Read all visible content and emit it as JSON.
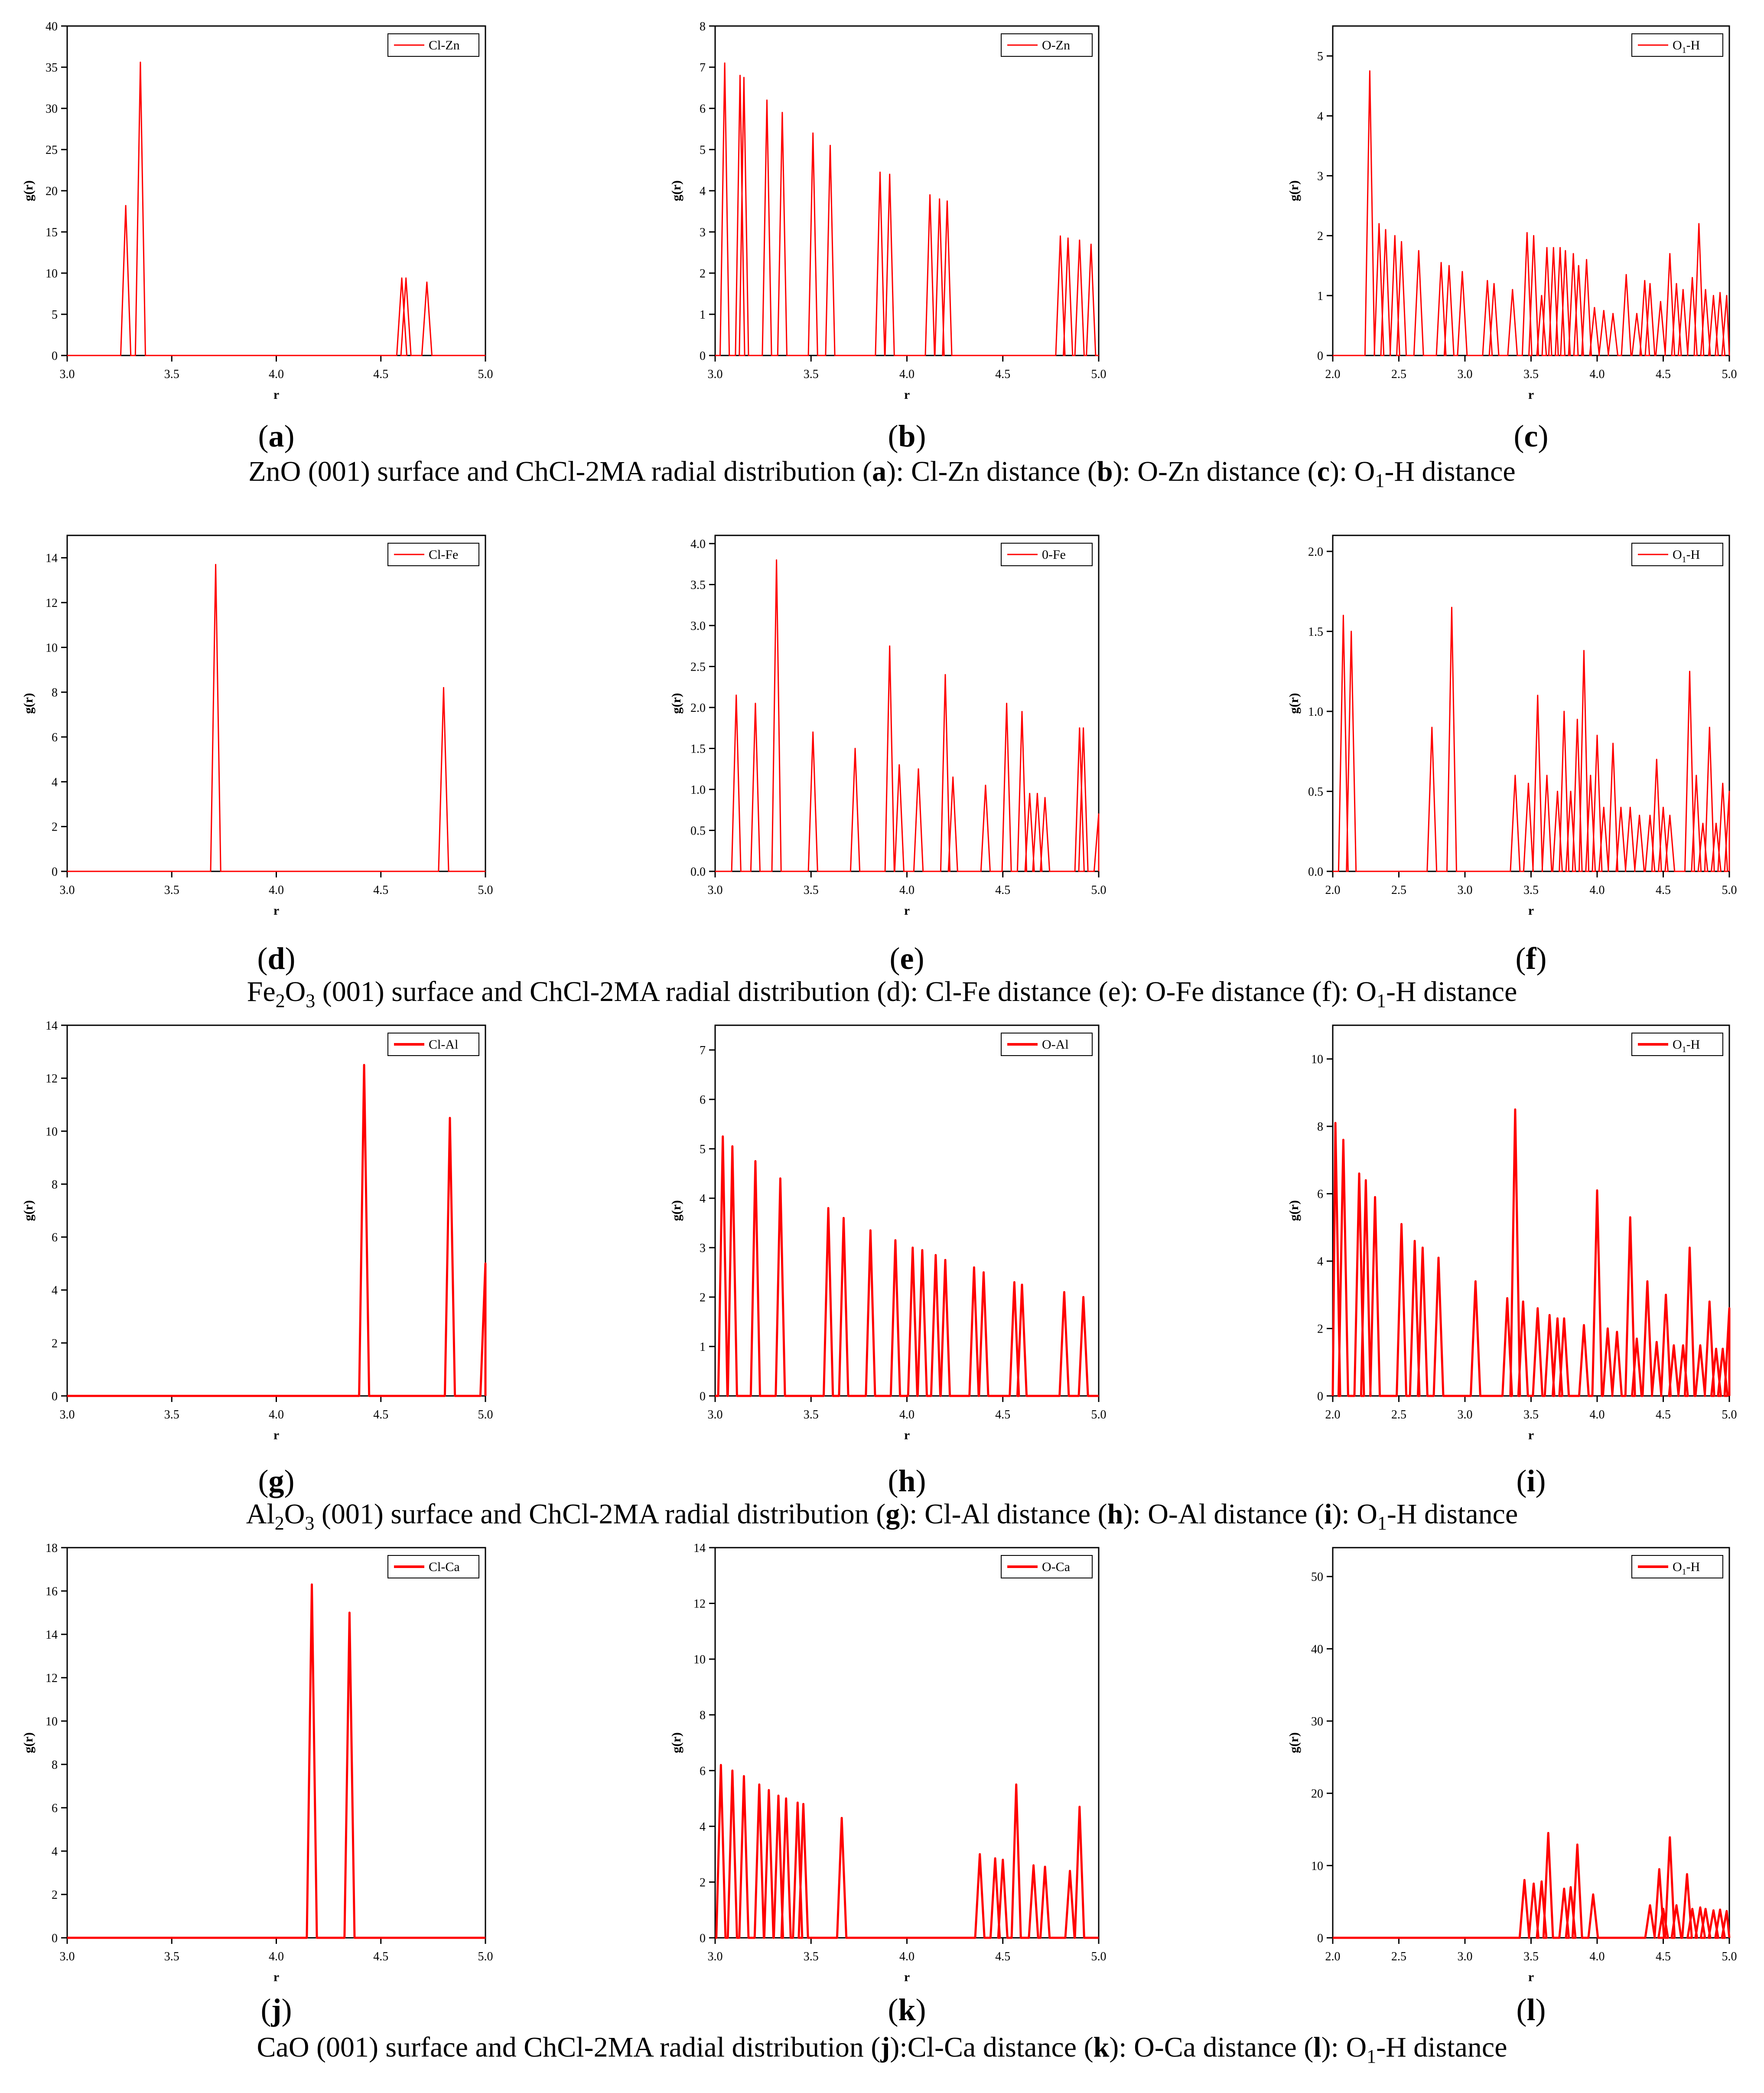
{
  "colors": {
    "series": "#ff0000",
    "axis": "#000000",
    "frame": "#000000"
  },
  "panel_letters": [
    "a",
    "b",
    "c",
    "d",
    "e",
    "f",
    "g",
    "h",
    "i",
    "j",
    "k",
    "l"
  ],
  "captions": [
    {
      "parts": [
        {
          "t": "ZnO (001) surface and ChCl-2MA radial distribution ("
        },
        {
          "t": "a",
          "b": true
        },
        {
          "t": "): Cl-Zn distance ("
        },
        {
          "t": "b",
          "b": true
        },
        {
          "t": "): O-Zn distance ("
        },
        {
          "t": "c",
          "b": true
        },
        {
          "t": "): O"
        },
        {
          "t": "1",
          "sub": true
        },
        {
          "t": "-H distance"
        }
      ]
    },
    {
      "parts": [
        {
          "t": "Fe"
        },
        {
          "t": "2",
          "sub": true
        },
        {
          "t": "O"
        },
        {
          "t": "3",
          "sub": true
        },
        {
          "t": " (001) surface and ChCl-2MA radial distribution (d): Cl-Fe distance (e): O-Fe distance (f): O"
        },
        {
          "t": "1",
          "sub": true
        },
        {
          "t": "-H distance"
        }
      ]
    },
    {
      "parts": [
        {
          "t": "Al"
        },
        {
          "t": "2",
          "sub": true
        },
        {
          "t": "O"
        },
        {
          "t": "3",
          "sub": true
        },
        {
          "t": " (001) surface and ChCl-2MA radial distribution ("
        },
        {
          "t": "g",
          "b": true
        },
        {
          "t": "): Cl-Al distance ("
        },
        {
          "t": "h",
          "b": true
        },
        {
          "t": "): O-Al distance ("
        },
        {
          "t": "i",
          "b": true
        },
        {
          "t": "): O"
        },
        {
          "t": "1",
          "sub": true
        },
        {
          "t": "-H distance"
        }
      ]
    },
    {
      "parts": [
        {
          "t": "CaO (001) surface and ChCl-2MA radial distribution ("
        },
        {
          "t": "j",
          "b": true
        },
        {
          "t": "):Cl-Ca distance ("
        },
        {
          "t": "k",
          "b": true
        },
        {
          "t": "): O-Ca distance ("
        },
        {
          "t": "l",
          "b": true
        },
        {
          "t": "): O"
        },
        {
          "t": "1",
          "sub": true
        },
        {
          "t": "-H distance"
        }
      ]
    }
  ],
  "chart_data": [
    {
      "id": "a",
      "type": "line",
      "legend": "Cl-Zn",
      "xlabel": "r",
      "ylabel": "g(r)",
      "xlim": [
        3.0,
        5.0
      ],
      "ylim": [
        0,
        40
      ],
      "xticks": [
        "3.0",
        "3.5",
        "4.0",
        "4.5",
        "5.0"
      ],
      "yticks": [
        "0",
        "5",
        "10",
        "15",
        "20",
        "25",
        "30",
        "35",
        "40"
      ],
      "peaks": [
        [
          3.28,
          18.2
        ],
        [
          3.35,
          35.6
        ],
        [
          4.6,
          9.4
        ],
        [
          4.62,
          9.4
        ],
        [
          4.72,
          8.9
        ]
      ]
    },
    {
      "id": "b",
      "type": "line",
      "legend": "O-Zn",
      "xlabel": "r",
      "ylabel": "g(r)",
      "xlim": [
        3.0,
        5.0
      ],
      "ylim": [
        0,
        8
      ],
      "xticks": [
        "3.0",
        "3.5",
        "4.0",
        "4.5",
        "5.0"
      ],
      "yticks": [
        "0",
        "1",
        "2",
        "3",
        "4",
        "5",
        "6",
        "7",
        "8"
      ],
      "peaks": [
        [
          3.05,
          7.1
        ],
        [
          3.13,
          6.8
        ],
        [
          3.15,
          6.75
        ],
        [
          3.27,
          6.2
        ],
        [
          3.35,
          5.9
        ],
        [
          3.51,
          5.4
        ],
        [
          3.6,
          5.1
        ],
        [
          3.86,
          4.45
        ],
        [
          3.91,
          4.4
        ],
        [
          4.12,
          3.9
        ],
        [
          4.17,
          3.8
        ],
        [
          4.21,
          3.75
        ],
        [
          4.8,
          2.9
        ],
        [
          4.84,
          2.85
        ],
        [
          4.9,
          2.8
        ],
        [
          4.96,
          2.7
        ]
      ]
    },
    {
      "id": "c",
      "type": "line",
      "legend": "O1-H",
      "legend_sub": true,
      "xlabel": "r",
      "ylabel": "g(r)",
      "xlim": [
        2.0,
        5.0
      ],
      "ylim": [
        0,
        5.5
      ],
      "xticks": [
        "2.0",
        "2.5",
        "3.0",
        "3.5",
        "4.0",
        "4.5",
        "5.0"
      ],
      "yticks": [
        "0",
        "1",
        "2",
        "3",
        "4",
        "5"
      ],
      "peaks": [
        [
          2.28,
          4.75
        ],
        [
          2.35,
          2.2
        ],
        [
          2.4,
          2.1
        ],
        [
          2.47,
          2.0
        ],
        [
          2.52,
          1.9
        ],
        [
          2.65,
          1.75
        ],
        [
          2.82,
          1.55
        ],
        [
          2.88,
          1.5
        ],
        [
          2.98,
          1.4
        ],
        [
          3.17,
          1.25
        ],
        [
          3.22,
          1.2
        ],
        [
          3.36,
          1.1
        ],
        [
          3.47,
          2.05
        ],
        [
          3.52,
          2.0
        ],
        [
          3.58,
          1.0
        ],
        [
          3.62,
          1.8
        ],
        [
          3.67,
          1.8
        ],
        [
          3.72,
          1.8
        ],
        [
          3.76,
          1.75
        ],
        [
          3.82,
          1.7
        ],
        [
          3.86,
          1.5
        ],
        [
          3.92,
          1.6
        ],
        [
          3.98,
          0.8
        ],
        [
          4.05,
          0.75
        ],
        [
          4.12,
          0.7
        ],
        [
          4.22,
          1.35
        ],
        [
          4.3,
          0.7
        ],
        [
          4.36,
          1.25
        ],
        [
          4.4,
          1.2
        ],
        [
          4.48,
          0.9
        ],
        [
          4.55,
          1.7
        ],
        [
          4.6,
          1.2
        ],
        [
          4.65,
          1.1
        ],
        [
          4.72,
          1.3
        ],
        [
          4.77,
          2.2
        ],
        [
          4.82,
          1.1
        ],
        [
          4.88,
          1.0
        ],
        [
          4.93,
          1.05
        ],
        [
          4.98,
          1.0
        ]
      ]
    },
    {
      "id": "d",
      "type": "line",
      "legend": "Cl-Fe",
      "xlabel": "r",
      "ylabel": "g(r)",
      "xlim": [
        3.0,
        5.0
      ],
      "ylim": [
        0,
        15
      ],
      "xticks": [
        "3.0",
        "3.5",
        "4.0",
        "4.5",
        "5.0"
      ],
      "yticks": [
        "0",
        "2",
        "4",
        "6",
        "8",
        "10",
        "12",
        "14"
      ],
      "peaks": [
        [
          3.71,
          13.7
        ],
        [
          4.8,
          8.2
        ]
      ]
    },
    {
      "id": "e",
      "type": "line",
      "legend": "0-Fe",
      "xlabel": "r",
      "ylabel": "g(r)",
      "xlim": [
        3.0,
        5.0
      ],
      "ylim": [
        0,
        4.1
      ],
      "xticks": [
        "3.0",
        "3.5",
        "4.0",
        "4.5",
        "5.0"
      ],
      "yticks": [
        "0.0",
        "0.5",
        "1.0",
        "1.5",
        "2.0",
        "2.5",
        "3.0",
        "3.5",
        "4.0"
      ],
      "peaks": [
        [
          3.11,
          2.15
        ],
        [
          3.21,
          2.05
        ],
        [
          3.32,
          3.8
        ],
        [
          3.51,
          1.7
        ],
        [
          3.73,
          1.5
        ],
        [
          3.91,
          2.75
        ],
        [
          3.96,
          1.3
        ],
        [
          4.06,
          1.25
        ],
        [
          4.2,
          2.4
        ],
        [
          4.24,
          1.15
        ],
        [
          4.41,
          1.05
        ],
        [
          4.52,
          2.05
        ],
        [
          4.6,
          1.95
        ],
        [
          4.64,
          0.95
        ],
        [
          4.68,
          0.95
        ],
        [
          4.72,
          0.9
        ],
        [
          4.9,
          1.75
        ],
        [
          4.92,
          1.75
        ],
        [
          5.0,
          0.7
        ]
      ]
    },
    {
      "id": "f",
      "type": "line",
      "legend": "O1-H",
      "legend_sub": true,
      "xlabel": "r",
      "ylabel": "g(r)",
      "xlim": [
        2.0,
        5.0
      ],
      "ylim": [
        0,
        2.1
      ],
      "xticks": [
        "2.0",
        "2.5",
        "3.0",
        "3.5",
        "4.0",
        "4.5",
        "5.0"
      ],
      "yticks": [
        "0.0",
        "0.5",
        "1.0",
        "1.5",
        "2.0"
      ],
      "peaks": [
        [
          2.08,
          1.6
        ],
        [
          2.14,
          1.5
        ],
        [
          2.75,
          0.9
        ],
        [
          2.9,
          1.65
        ],
        [
          3.38,
          0.6
        ],
        [
          3.48,
          0.55
        ],
        [
          3.55,
          1.1
        ],
        [
          3.62,
          0.6
        ],
        [
          3.7,
          0.5
        ],
        [
          3.75,
          1.0
        ],
        [
          3.8,
          0.5
        ],
        [
          3.85,
          0.95
        ],
        [
          3.9,
          1.38
        ],
        [
          3.95,
          0.6
        ],
        [
          4.0,
          0.85
        ],
        [
          4.05,
          0.4
        ],
        [
          4.12,
          0.8
        ],
        [
          4.18,
          0.4
        ],
        [
          4.25,
          0.4
        ],
        [
          4.32,
          0.35
        ],
        [
          4.4,
          0.35
        ],
        [
          4.45,
          0.7
        ],
        [
          4.5,
          0.4
        ],
        [
          4.55,
          0.35
        ],
        [
          4.7,
          1.25
        ],
        [
          4.75,
          0.6
        ],
        [
          4.8,
          0.3
        ],
        [
          4.85,
          0.9
        ],
        [
          4.9,
          0.3
        ],
        [
          4.95,
          0.55
        ],
        [
          5.0,
          0.5
        ]
      ]
    },
    {
      "id": "g",
      "type": "line",
      "legend": "Cl-Al",
      "xlabel": "r",
      "ylabel": "g(r)",
      "xlim": [
        3.0,
        5.0
      ],
      "ylim": [
        0,
        14
      ],
      "xticks": [
        "3.0",
        "3.5",
        "4.0",
        "4.5",
        "5.0"
      ],
      "yticks": [
        "0",
        "2",
        "4",
        "6",
        "8",
        "10",
        "12",
        "14"
      ],
      "peaks": [
        [
          4.42,
          12.5
        ],
        [
          4.83,
          10.5
        ],
        [
          5.0,
          5.0
        ]
      ]
    },
    {
      "id": "h",
      "type": "line",
      "legend": "O-Al",
      "xlabel": "r",
      "ylabel": "g(r)",
      "xlim": [
        3.0,
        5.0
      ],
      "ylim": [
        0,
        7.5
      ],
      "xticks": [
        "3.0",
        "3.5",
        "4.0",
        "4.5",
        "5.0"
      ],
      "yticks": [
        "0",
        "1",
        "2",
        "3",
        "4",
        "5",
        "6",
        "7"
      ],
      "peaks": [
        [
          3.04,
          5.25
        ],
        [
          3.09,
          5.05
        ],
        [
          3.21,
          4.75
        ],
        [
          3.34,
          4.4
        ],
        [
          3.59,
          3.8
        ],
        [
          3.67,
          3.6
        ],
        [
          3.81,
          3.35
        ],
        [
          3.94,
          3.15
        ],
        [
          4.03,
          3.0
        ],
        [
          4.08,
          2.95
        ],
        [
          4.15,
          2.85
        ],
        [
          4.2,
          2.75
        ],
        [
          4.35,
          2.6
        ],
        [
          4.4,
          2.5
        ],
        [
          4.56,
          2.3
        ],
        [
          4.6,
          2.25
        ],
        [
          4.82,
          2.1
        ],
        [
          4.92,
          2.0
        ]
      ]
    },
    {
      "id": "i",
      "type": "line",
      "legend": "O1-H",
      "legend_sub": true,
      "xlabel": "r",
      "ylabel": "g(r)",
      "xlim": [
        2.0,
        5.0
      ],
      "ylim": [
        0,
        11
      ],
      "xticks": [
        "2.0",
        "2.5",
        "3.0",
        "3.5",
        "4.0",
        "4.5",
        "5.0"
      ],
      "yticks": [
        "0",
        "2",
        "4",
        "6",
        "8",
        "10"
      ],
      "peaks": [
        [
          2.02,
          8.1
        ],
        [
          2.08,
          7.6
        ],
        [
          2.2,
          6.6
        ],
        [
          2.25,
          6.4
        ],
        [
          2.32,
          5.9
        ],
        [
          2.52,
          5.1
        ],
        [
          2.62,
          4.6
        ],
        [
          2.68,
          4.4
        ],
        [
          2.8,
          4.1
        ],
        [
          3.08,
          3.4
        ],
        [
          3.32,
          2.9
        ],
        [
          3.38,
          8.5
        ],
        [
          3.44,
          2.8
        ],
        [
          3.55,
          2.6
        ],
        [
          3.64,
          2.4
        ],
        [
          3.7,
          2.3
        ],
        [
          3.75,
          2.3
        ],
        [
          3.9,
          2.1
        ],
        [
          4.0,
          6.1
        ],
        [
          4.08,
          2.0
        ],
        [
          4.15,
          1.9
        ],
        [
          4.25,
          5.3
        ],
        [
          4.3,
          1.7
        ],
        [
          4.38,
          3.4
        ],
        [
          4.45,
          1.6
        ],
        [
          4.52,
          3.0
        ],
        [
          4.58,
          1.5
        ],
        [
          4.65,
          1.5
        ],
        [
          4.7,
          4.4
        ],
        [
          4.78,
          1.5
        ],
        [
          4.85,
          2.8
        ],
        [
          4.9,
          1.4
        ],
        [
          4.95,
          1.4
        ],
        [
          5.0,
          2.6
        ]
      ]
    },
    {
      "id": "j",
      "type": "line",
      "legend": "Cl-Ca",
      "xlabel": "r",
      "ylabel": "g(r)",
      "xlim": [
        3.0,
        5.0
      ],
      "ylim": [
        0,
        18
      ],
      "xticks": [
        "3.0",
        "3.5",
        "4.0",
        "4.5",
        "5.0"
      ],
      "yticks": [
        "0",
        "2",
        "4",
        "6",
        "8",
        "10",
        "12",
        "14",
        "16",
        "18"
      ],
      "peaks": [
        [
          4.17,
          16.3
        ],
        [
          4.35,
          15.0
        ]
      ]
    },
    {
      "id": "k",
      "type": "line",
      "legend": "O-Ca",
      "xlabel": "r",
      "ylabel": "g(r)",
      "xlim": [
        3.0,
        5.0
      ],
      "ylim": [
        0,
        14
      ],
      "xticks": [
        "3.0",
        "3.5",
        "4.0",
        "4.5",
        "5.0"
      ],
      "yticks": [
        "0",
        "2",
        "4",
        "6",
        "8",
        "10",
        "12",
        "14"
      ],
      "peaks": [
        [
          3.03,
          6.2
        ],
        [
          3.09,
          6.0
        ],
        [
          3.15,
          5.8
        ],
        [
          3.23,
          5.5
        ],
        [
          3.28,
          5.3
        ],
        [
          3.33,
          5.1
        ],
        [
          3.37,
          5.0
        ],
        [
          3.43,
          4.85
        ],
        [
          3.46,
          4.8
        ],
        [
          3.66,
          4.3
        ],
        [
          4.38,
          3.0
        ],
        [
          4.46,
          2.85
        ],
        [
          4.5,
          2.8
        ],
        [
          4.57,
          5.5
        ],
        [
          4.66,
          2.6
        ],
        [
          4.72,
          2.55
        ],
        [
          4.85,
          2.4
        ],
        [
          4.9,
          4.7
        ]
      ]
    },
    {
      "id": "l",
      "type": "line",
      "legend": "O1-H",
      "legend_sub": true,
      "xlabel": "r",
      "ylabel": "g(r)",
      "xlim": [
        2.0,
        5.0
      ],
      "ylim": [
        0,
        54
      ],
      "xticks": [
        "2.0",
        "2.5",
        "3.0",
        "3.5",
        "4.0",
        "4.5",
        "5.0"
      ],
      "yticks": [
        "0",
        "10",
        "20",
        "30",
        "40",
        "50"
      ],
      "peaks": [
        [
          3.45,
          8.0
        ],
        [
          3.52,
          7.5
        ],
        [
          3.58,
          7.8
        ],
        [
          3.63,
          14.5
        ],
        [
          3.75,
          6.8
        ],
        [
          3.8,
          7.0
        ],
        [
          3.85,
          12.9
        ],
        [
          3.97,
          6.0
        ],
        [
          4.4,
          4.5
        ],
        [
          4.47,
          9.5
        ],
        [
          4.5,
          4.0
        ],
        [
          4.55,
          13.9
        ],
        [
          4.6,
          4.5
        ],
        [
          4.68,
          8.8
        ],
        [
          4.72,
          4.0
        ],
        [
          4.78,
          4.2
        ],
        [
          4.82,
          4.0
        ],
        [
          4.88,
          3.8
        ],
        [
          4.93,
          3.9
        ],
        [
          4.98,
          3.7
        ]
      ]
    }
  ]
}
